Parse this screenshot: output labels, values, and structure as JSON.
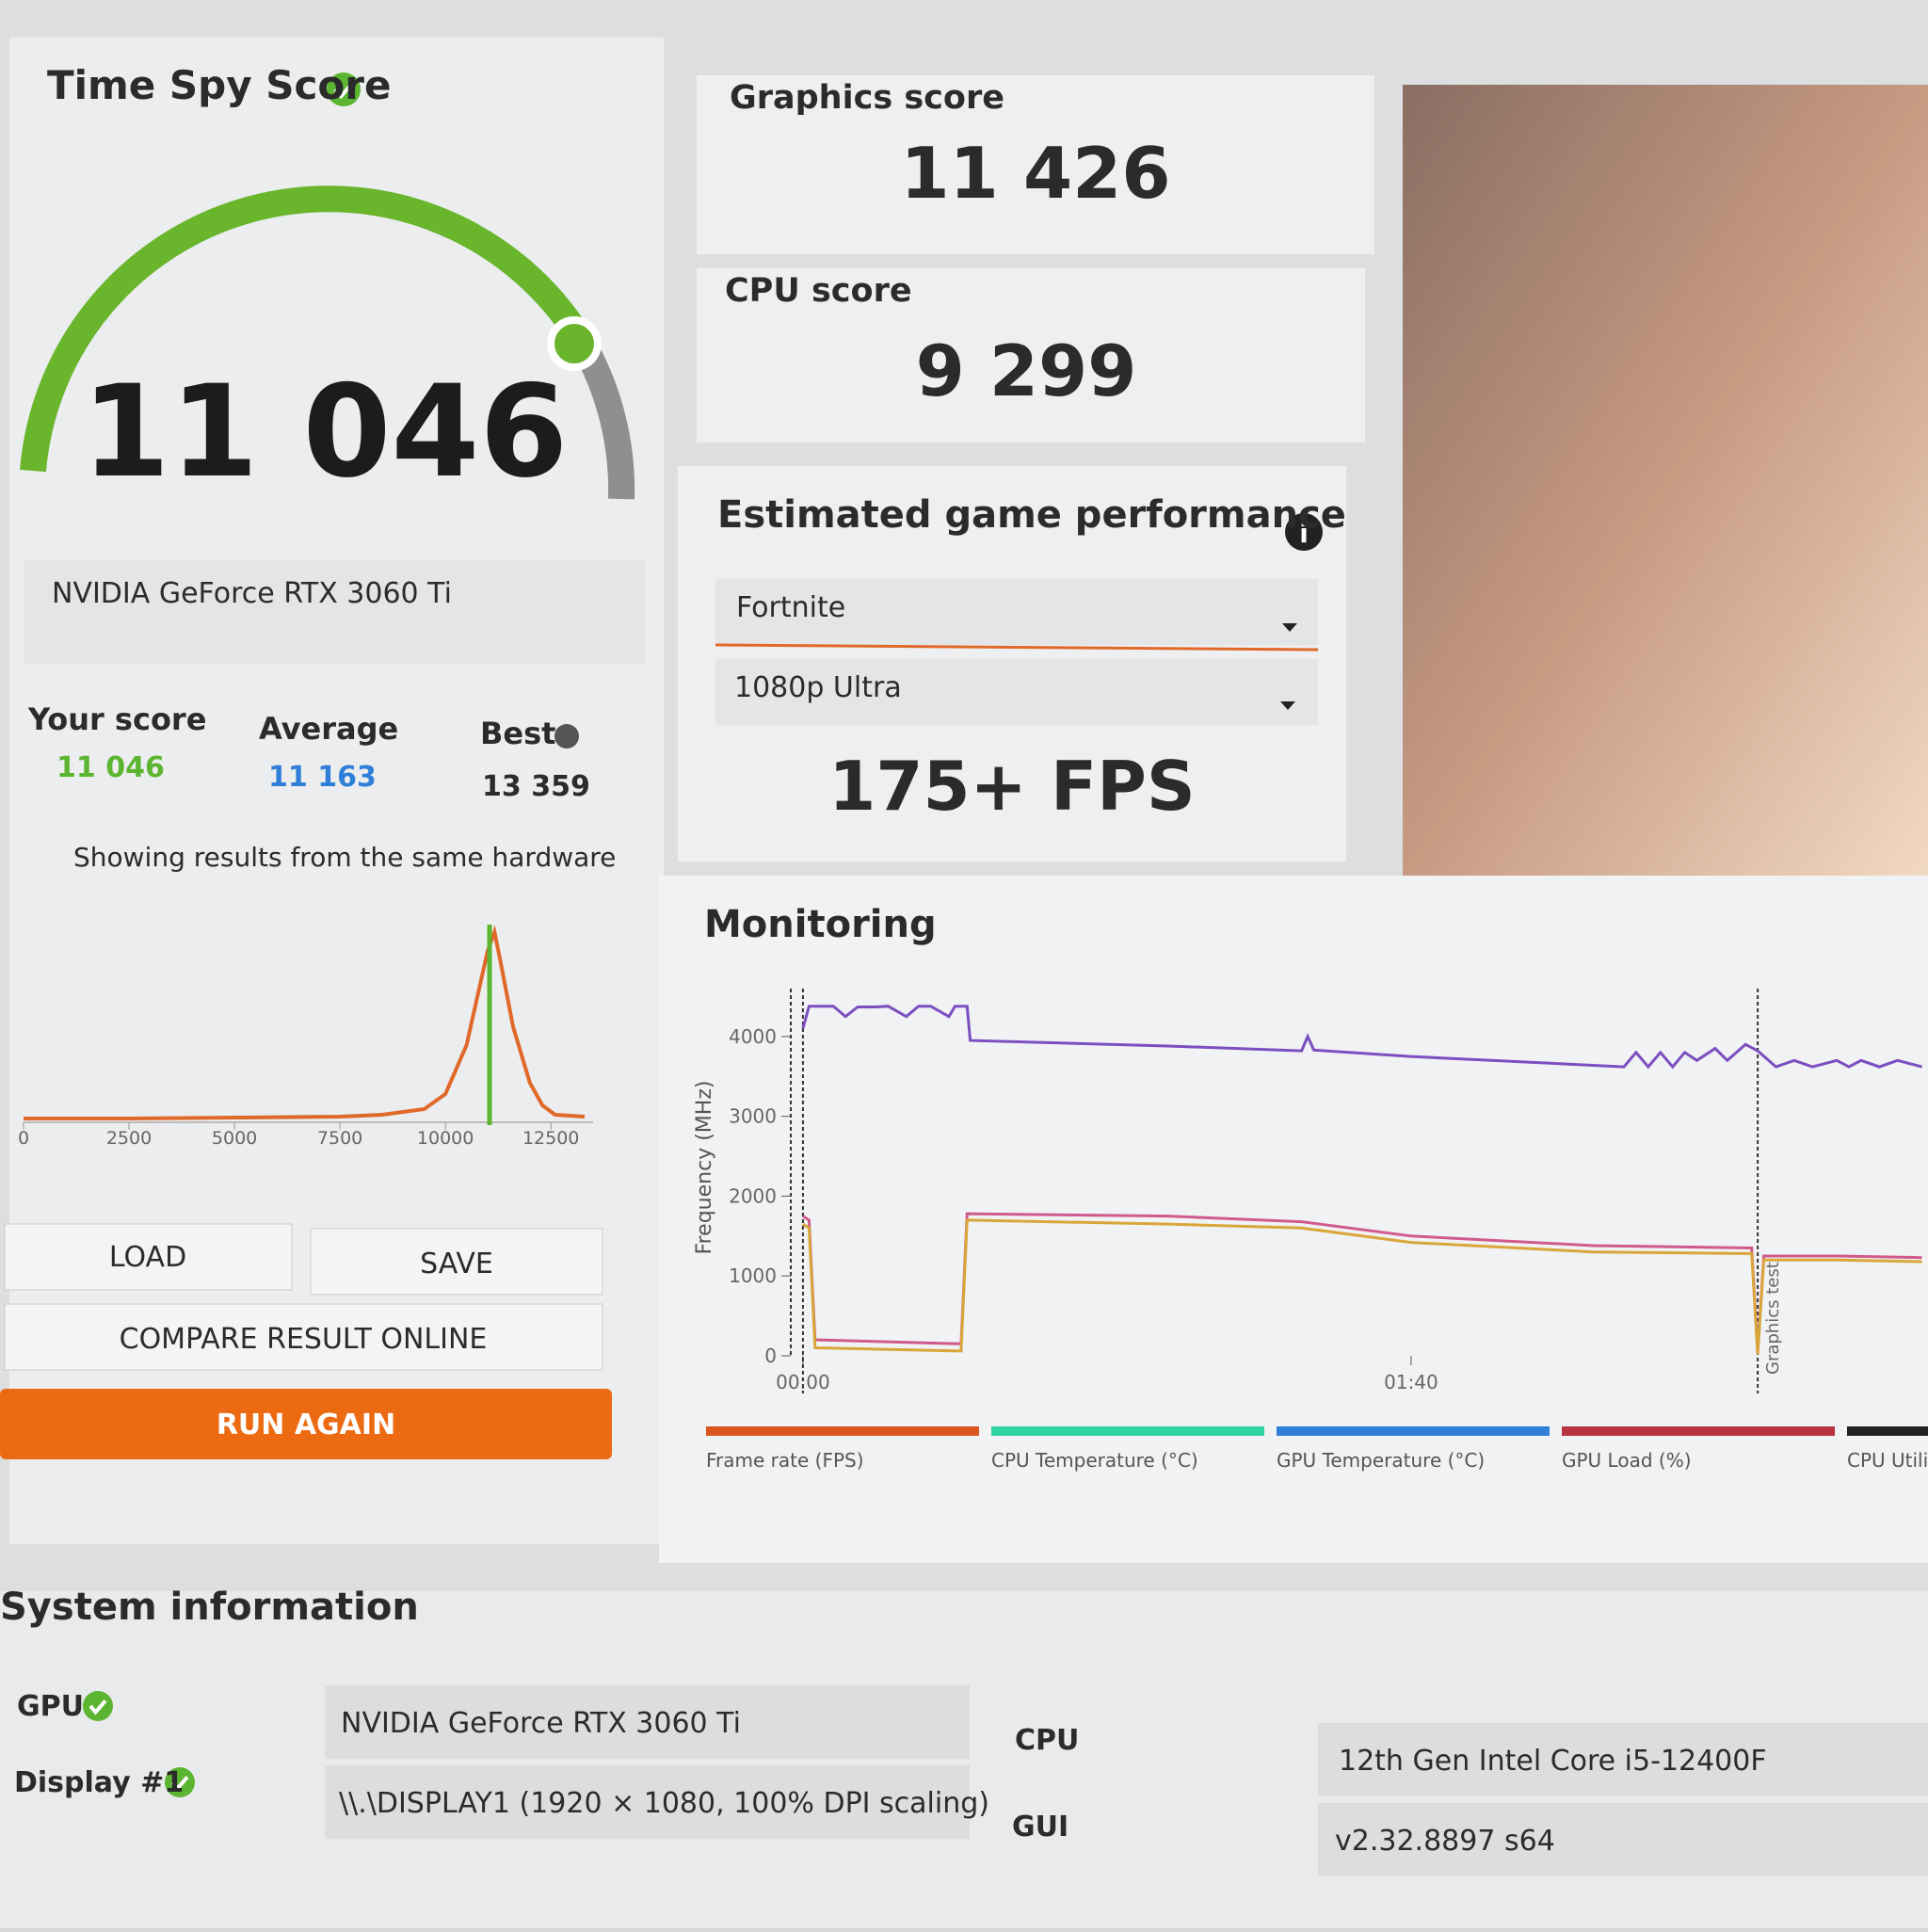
{
  "score_panel": {
    "title": "Time Spy Score",
    "score": "11 046",
    "gpu": "NVIDIA GeForce RTX 3060 Ti",
    "your_score_label": "Your score",
    "your_score": "11 046",
    "average_label": "Average",
    "average": "11 163",
    "best_label": "Best",
    "best": "13 359",
    "note": "Showing results from the same hardware"
  },
  "distribution_chart": {
    "type": "line",
    "color": "#e0692a",
    "marker_color": "#5cb531",
    "xlim": [
      0,
      13500
    ],
    "ylim": [
      0,
      100
    ],
    "xticks": [
      0,
      2500,
      5000,
      7500,
      10000,
      12500
    ],
    "x": [
      0,
      2500,
      5000,
      7500,
      8500,
      9500,
      10000,
      10500,
      10800,
      11000,
      11163,
      11300,
      11600,
      12000,
      12300,
      12600,
      13300
    ],
    "values": [
      1,
      1,
      1.5,
      2,
      3,
      6,
      14,
      40,
      70,
      90,
      100,
      85,
      50,
      20,
      8,
      3,
      2
    ],
    "marker": 11046
  },
  "buttons": {
    "load": "LOAD",
    "save": "SAVE",
    "compare": "COMPARE RESULT ONLINE",
    "run_again": "RUN AGAIN"
  },
  "graphics": {
    "label": "Graphics score",
    "value": "11 426"
  },
  "cpu": {
    "label": "CPU score",
    "value": "9 299"
  },
  "game_performance": {
    "title": "Estimated game performance",
    "game": "Fortnite",
    "preset": "1080p Ultra",
    "fps": "175+ FPS"
  },
  "monitoring": {
    "title": "Monitoring",
    "chart": {
      "type": "line",
      "y_label": "Frequency (MHz)",
      "xlim": [
        -2,
        185
      ],
      "ylim": [
        0,
        4600
      ],
      "yticks": [
        0,
        1000,
        2000,
        3000,
        4000
      ],
      "xticks": [
        {
          "value": 0,
          "label": "00:00"
        },
        {
          "value": 100,
          "label": "01:40"
        }
      ],
      "markers": [
        0,
        157
      ],
      "marker_label": "Graphics test",
      "lines": [
        {
          "color": "#7b4fc0",
          "x": [
            0,
            1,
            5,
            7,
            9,
            12,
            14,
            17,
            19,
            21,
            24,
            25,
            27,
            27.5,
            60,
            82,
            83,
            84,
            100,
            135,
            137,
            139,
            141,
            143,
            145,
            147,
            150,
            152,
            155,
            157,
            160,
            163,
            166,
            170,
            172,
            174,
            177,
            180,
            184
          ],
          "values": [
            4100,
            4380,
            4380,
            4250,
            4370,
            4370,
            4380,
            4250,
            4380,
            4380,
            4250,
            4380,
            4380,
            3950,
            3880,
            3820,
            4000,
            3830,
            3750,
            3620,
            3800,
            3620,
            3800,
            3620,
            3800,
            3700,
            3850,
            3700,
            3900,
            3820,
            3620,
            3700,
            3620,
            3700,
            3620,
            3700,
            3620,
            3700,
            3620
          ]
        },
        {
          "color": "#d05a8c",
          "x": [
            0,
            1,
            2,
            26,
            27,
            60,
            82,
            100,
            130,
            156,
            157,
            158,
            170,
            184
          ],
          "values": [
            1750,
            1700,
            200,
            150,
            1780,
            1750,
            1680,
            1500,
            1380,
            1350,
            50,
            1250,
            1250,
            1230
          ]
        },
        {
          "color": "#d9a63a",
          "x": [
            0,
            1,
            2,
            26,
            27,
            60,
            82,
            100,
            130,
            156,
            157,
            158,
            170,
            184
          ],
          "values": [
            1650,
            1600,
            100,
            60,
            1700,
            1650,
            1600,
            1420,
            1300,
            1280,
            20,
            1200,
            1200,
            1180
          ]
        }
      ]
    },
    "legend": [
      {
        "name": "Frame rate (FPS)",
        "color": "#d9561e"
      },
      {
        "name": "CPU Temperature (°C)",
        "color": "#2fd3a3"
      },
      {
        "name": "GPU Temperature (°C)",
        "color": "#2f7fd8"
      },
      {
        "name": "GPU Load (%)",
        "color": "#b8333f"
      },
      {
        "name": "CPU Utili",
        "color": "#222222"
      }
    ]
  },
  "system_info": {
    "title": "System information",
    "gpu_label": "GPU",
    "gpu": "NVIDIA GeForce RTX 3060 Ti",
    "display_label": "Display #1",
    "display": "\\\\.\\DISPLAY1 (1920 × 1080, 100% DPI scaling)",
    "cpu_label": "CPU",
    "cpu": "12th Gen Intel Core i5-12400F",
    "gui_label": "GUI",
    "gui": "v2.32.8897 s64"
  }
}
